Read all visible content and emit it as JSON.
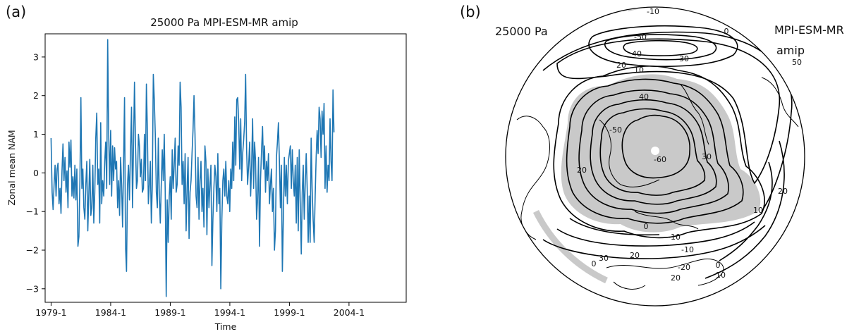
{
  "panels": {
    "a": {
      "label": "(a)",
      "chart_data": {
        "type": "line",
        "title": "25000 Pa  MPI-ESM-MR amip",
        "xlabel": "Time",
        "ylabel": "Zonal mean NAM",
        "xticks": [
          "1979-1",
          "1984-1",
          "1989-1",
          "1994-1",
          "1999-1",
          "2004-1"
        ],
        "yticks": [
          -3,
          -2,
          -1,
          0,
          1,
          2,
          3
        ],
        "xlim": [
          1978.5,
          2008.8
        ],
        "ylim": [
          -3.35,
          3.6
        ],
        "grid": false,
        "series": [
          {
            "color": "#1f77b4",
            "x_start": 1979.0,
            "x_step": 0.0833,
            "values": [
              0.9,
              -0.5,
              -0.95,
              -0.3,
              0.2,
              -0.6,
              0.1,
              0.25,
              -0.8,
              -0.4,
              -1.05,
              0.05,
              0.75,
              -0.2,
              0.4,
              -0.5,
              0.05,
              -0.9,
              0.8,
              0.15,
              0.85,
              -0.6,
              -0.1,
              -0.65,
              0.2,
              -0.7,
              0.1,
              -1.9,
              -1.65,
              -0.2,
              1.95,
              -0.4,
              0.1,
              -0.9,
              -1.2,
              -0.3,
              0.3,
              -1.5,
              -0.6,
              0.35,
              -1.1,
              -0.9,
              0.2,
              -1.3,
              -0.5,
              0.9,
              1.55,
              -0.3,
              0.1,
              -1.3,
              1.3,
              -0.8,
              -0.2,
              -0.6,
              0.3,
              0.8,
              -0.4,
              3.45,
              1.0,
              -0.3,
              1.1,
              -0.6,
              0.7,
              -0.2,
              0.65,
              0.1,
              0.3,
              -0.9,
              -0.2,
              -1.1,
              0.4,
              -0.3,
              -1.4,
              0.2,
              1.95,
              -1.9,
              -2.55,
              -0.3,
              0.2,
              -0.7,
              0.6,
              1.7,
              -0.9,
              0.7,
              2.35,
              0.8,
              -0.4,
              -0.2,
              1.0,
              0.7,
              -0.1,
              0.35,
              -0.5,
              -0.4,
              1.0,
              -0.2,
              2.3,
              1.1,
              -0.8,
              -0.3,
              0.3,
              -1.3,
              -0.3,
              2.55,
              1.9,
              1.0,
              -0.5,
              -0.9,
              0.9,
              -0.6,
              -1.3,
              -0.3,
              0.6,
              -0.2,
              1.0,
              -0.5,
              -3.2,
              -0.7,
              -1.8,
              -0.6,
              -0.1,
              -1.2,
              0.6,
              -0.4,
              0.2,
              0.9,
              -0.5,
              -0.3,
              0.7,
              0.2,
              2.35,
              1.7,
              -0.3,
              0.3,
              -0.8,
              0.5,
              -1.5,
              -0.4,
              0.4,
              -1.7,
              -0.5,
              -0.2,
              0.5,
              1.1,
              2.0,
              1.0,
              -0.6,
              -0.9,
              0.4,
              -1.2,
              -0.2,
              0.3,
              -1.0,
              -0.4,
              -1.4,
              0.7,
              0.3,
              -1.6,
              0.1,
              -0.9,
              -0.3,
              0.2,
              -2.4,
              -1.2,
              -0.4,
              0.2,
              -0.1,
              -1.0,
              0.5,
              -0.8,
              -0.4,
              -3.0,
              -1.2,
              -0.2,
              0.1,
              -0.6,
              0.3,
              -0.6,
              -0.8,
              -0.2,
              -1.0,
              0.1,
              -0.4,
              0.8,
              -0.2,
              1.45,
              0.2,
              1.9,
              1.95,
              1.3,
              0.1,
              1.4,
              -0.2,
              0.5,
              0.85,
              1.3,
              2.55,
              0.6,
              -0.3,
              0.2,
              0.8,
              -0.6,
              0.2,
              1.4,
              -0.4,
              0.8,
              0.3,
              -1.2,
              -0.7,
              0.4,
              -1.9,
              -0.2,
              0.6,
              1.2,
              0.1,
              0.7,
              -0.5,
              0.3,
              -0.2,
              0.5,
              -0.8,
              -0.3,
              0.1,
              -1.0,
              -0.4,
              -2.0,
              -1.5,
              0.4,
              0.8,
              1.3,
              0.3,
              -0.9,
              0.2,
              -2.55,
              -1.2,
              0.4,
              -0.6,
              0.2,
              -0.8,
              0.3,
              0.5,
              0.7,
              -0.4,
              0.6,
              -0.2,
              -0.6,
              0.2,
              -1.3,
              0.4,
              -1.5,
              0.6,
              -0.8,
              -2.1,
              -0.5,
              0.2,
              -1.2,
              -0.3,
              0.5,
              -0.4,
              -1.8,
              -0.6,
              -1.8,
              0.9,
              -0.4,
              -1.2,
              -1.8,
              -0.6,
              0.4,
              1.1,
              0.5,
              1.7,
              1.4,
              0.4,
              1.6,
              1.0,
              1.8,
              -0.4,
              0.7,
              -0.5,
              0.2,
              -0.2,
              1.4,
              0.3,
              -0.2,
              2.15,
              1.05
            ]
          }
        ]
      }
    },
    "b": {
      "label": "(b)",
      "pressure_label": "25000 Pa",
      "model_label": "MPI-ESM-MR",
      "experiment_label": "amip",
      "contour_labels": [
        "-10",
        "0",
        "-50",
        "40",
        "30",
        "20",
        "10",
        "40",
        "-50",
        "50",
        "-60",
        "20",
        "30",
        "20",
        "10",
        "0",
        "-10",
        "30",
        "20",
        "-20",
        "10",
        "0",
        "20",
        "-10",
        "0"
      ],
      "shading_color": "#c9c9c9",
      "pole_marker_color": "#ffffff"
    }
  }
}
